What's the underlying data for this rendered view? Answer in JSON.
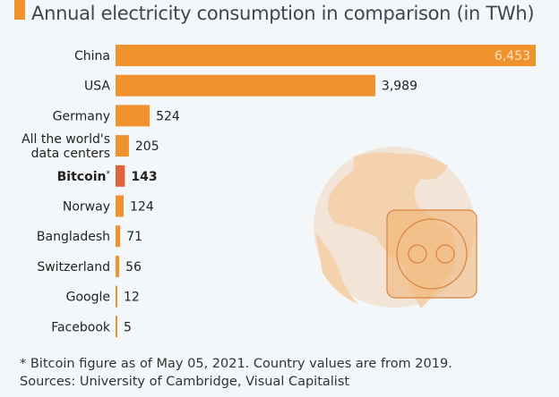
{
  "colors": {
    "bar": "#f0922e",
    "highlight": "#e0643a",
    "globe": "#f2e4d6",
    "land": "#f3d2ad",
    "socket": "#f0b070",
    "socket_stroke": "#d9843e"
  },
  "icons": [
    "globe-icon",
    "power-socket-icon"
  ],
  "chart_data": {
    "type": "bar",
    "orientation": "horizontal",
    "title": "Annual electricity consumption in comparison (in TWh)",
    "categories": [
      "China",
      "USA",
      "Germany",
      "All the world's data centers",
      "Bitcoin*",
      "Norway",
      "Bangladesh",
      "Switzerland",
      "Google",
      "Facebook"
    ],
    "category_lines": [
      [
        "China"
      ],
      [
        "USA"
      ],
      [
        "Germany"
      ],
      [
        "All the world's",
        "data centers"
      ],
      [
        "Bitcoin*"
      ],
      [
        "Norway"
      ],
      [
        "Bangladesh"
      ],
      [
        "Switzerland"
      ],
      [
        "Google"
      ],
      [
        "Facebook"
      ]
    ],
    "values": [
      6453,
      3989,
      524,
      205,
      143,
      124,
      71,
      56,
      12,
      5
    ],
    "value_labels": [
      "6,453",
      "3,989",
      "524",
      "205",
      "143",
      "124",
      "71",
      "56",
      "12",
      "5"
    ],
    "highlight": "Bitcoin*",
    "xlim": [
      0,
      6453
    ],
    "unit": "TWh",
    "grid": false,
    "legend": "none"
  },
  "footer": {
    "note": "* Bitcoin figure as of May 05, 2021. Country values are from 2019.",
    "sources": "Sources: University of Cambridge, Visual Capitalist"
  }
}
